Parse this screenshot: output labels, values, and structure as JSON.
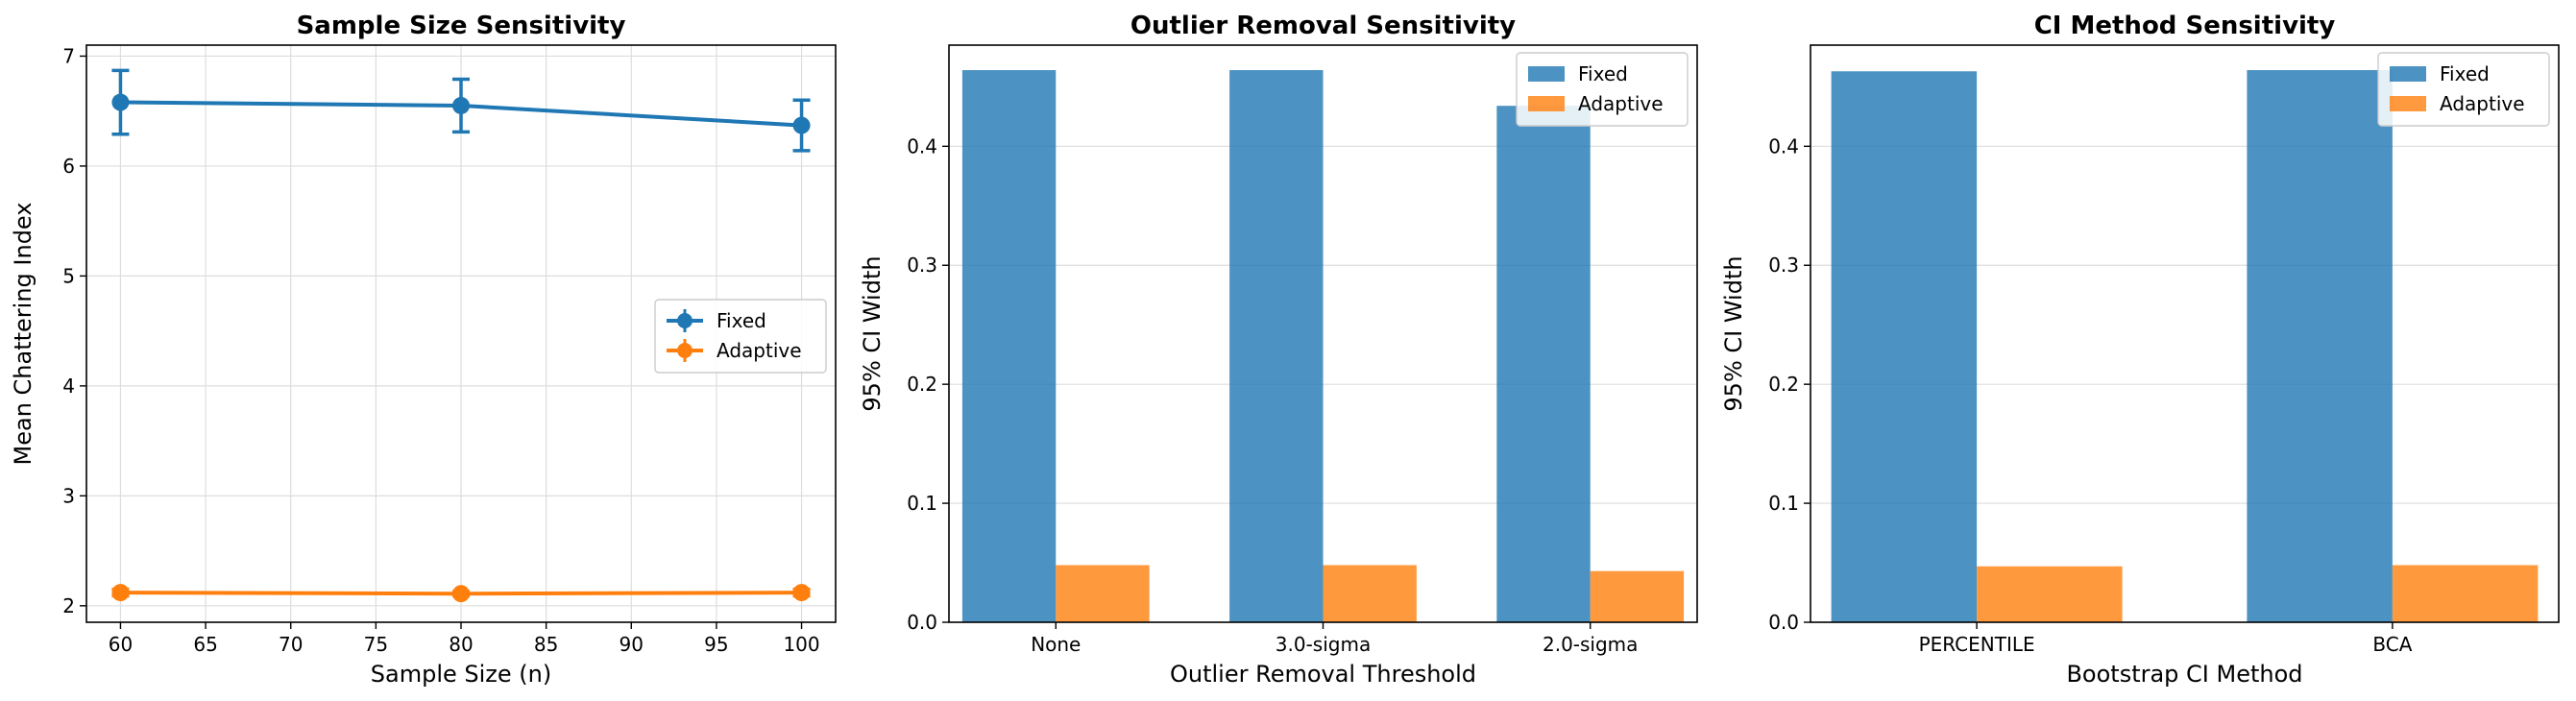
{
  "chart_data": [
    {
      "type": "line",
      "title": "Sample Size Sensitivity",
      "xlabel": "Sample Size (n)",
      "ylabel": "Mean Chattering Index",
      "x": [
        60,
        80,
        100
      ],
      "xlim": [
        58,
        102
      ],
      "ylim": [
        1.85,
        7.1
      ],
      "xticks": [
        "60",
        "65",
        "70",
        "75",
        "80",
        "85",
        "90",
        "95",
        "100"
      ],
      "yticks": [
        "2",
        "3",
        "4",
        "5",
        "6",
        "7"
      ],
      "grid": true,
      "legend": "center-right",
      "series": [
        {
          "name": "Fixed",
          "color": "#1f77b4",
          "values": [
            6.58,
            6.55,
            6.37
          ],
          "err": [
            0.29,
            0.24,
            0.23
          ]
        },
        {
          "name": "Adaptive",
          "color": "#ff7f0e",
          "values": [
            2.12,
            2.11,
            2.12
          ],
          "err": [
            0.03,
            0.02,
            0.03
          ]
        }
      ]
    },
    {
      "type": "bar",
      "title": "Outlier Removal Sensitivity",
      "xlabel": "Outlier Removal Threshold",
      "ylabel": "95% CI Width",
      "categories": [
        "None",
        "3.0-sigma",
        "2.0-sigma"
      ],
      "ylim": [
        0,
        0.485
      ],
      "yticks": [
        "0.0",
        "0.1",
        "0.2",
        "0.3",
        "0.4"
      ],
      "grid": true,
      "legend": "top-right",
      "series": [
        {
          "name": "Fixed",
          "color": "#1f77b4",
          "values": [
            0.464,
            0.464,
            0.434
          ]
        },
        {
          "name": "Adaptive",
          "color": "#ff7f0e",
          "values": [
            0.048,
            0.048,
            0.043
          ]
        }
      ]
    },
    {
      "type": "bar",
      "title": "CI Method Sensitivity",
      "xlabel": "Bootstrap CI Method",
      "ylabel": "95% CI Width",
      "categories": [
        "PERCENTILE",
        "BCA"
      ],
      "ylim": [
        0,
        0.485
      ],
      "yticks": [
        "0.0",
        "0.1",
        "0.2",
        "0.3",
        "0.4"
      ],
      "grid": true,
      "legend": "top-right",
      "series": [
        {
          "name": "Fixed",
          "color": "#1f77b4",
          "values": [
            0.463,
            0.464
          ]
        },
        {
          "name": "Adaptive",
          "color": "#ff7f0e",
          "values": [
            0.047,
            0.048
          ]
        }
      ]
    }
  ]
}
